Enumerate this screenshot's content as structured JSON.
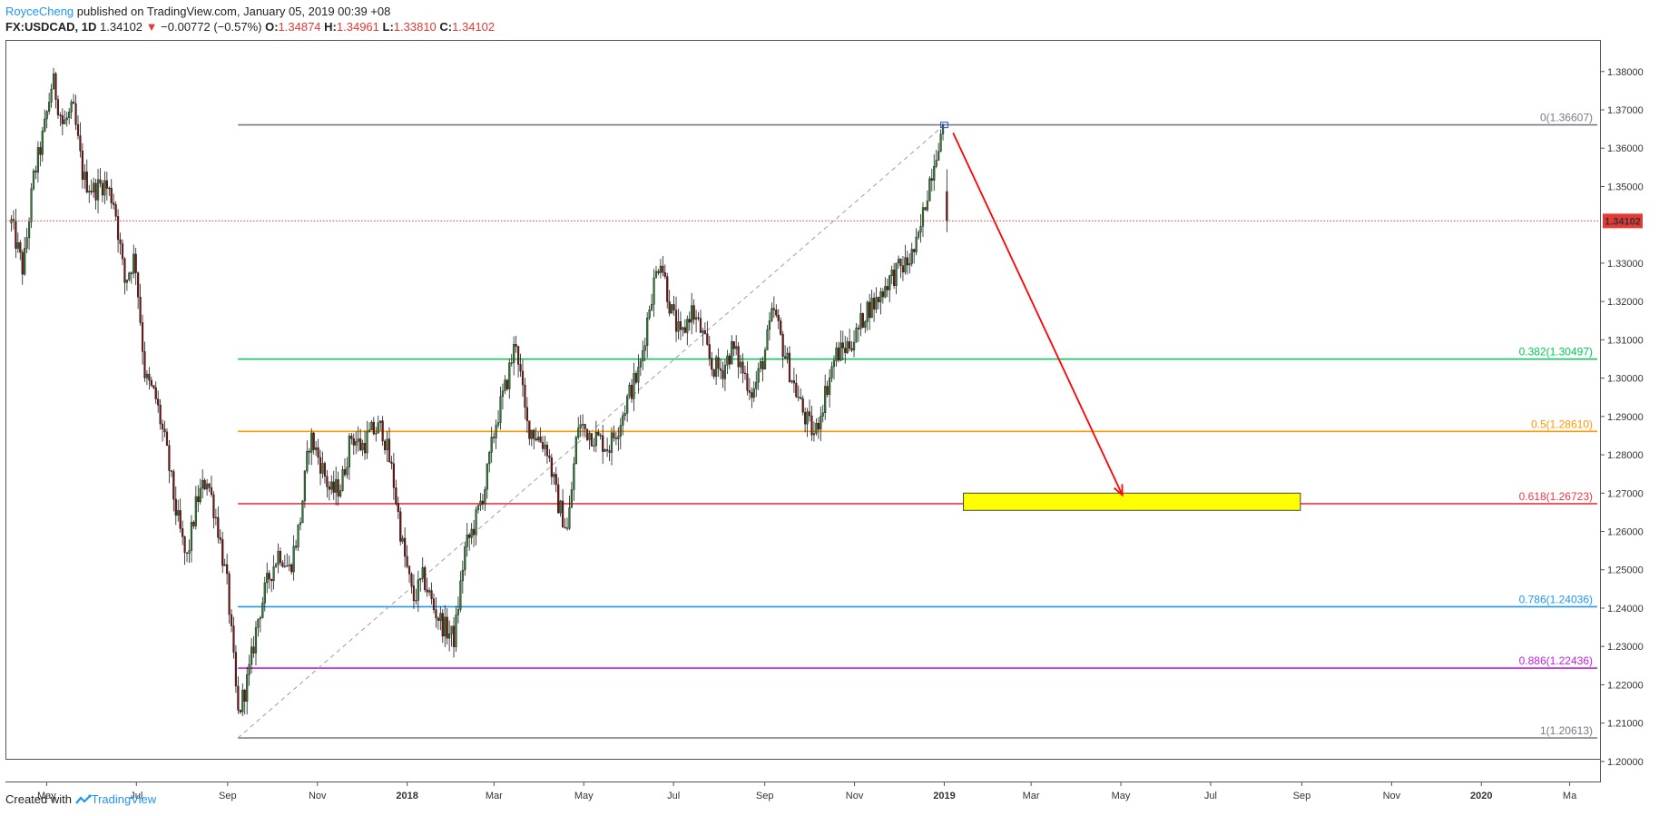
{
  "header": {
    "author": "RoyceCheng",
    "published": " published on TradingView.com, January 05, 2019 00:39 +08"
  },
  "ticker": {
    "symbol": "FX:USDCAD, 1D",
    "last": "1.34102",
    "arrow": "▼",
    "change": "−0.00772 (−0.57%)",
    "o_label": "O:",
    "o_value": "1.34874",
    "h_label": "H:",
    "h_value": "1.34961",
    "l_label": "L:",
    "l_value": "1.33810",
    "c_label": "C:",
    "c_value": "1.34102"
  },
  "footer": {
    "created_with": "Created with",
    "brand": "TradingView"
  },
  "colors": {
    "up_candle": "#2e7d32",
    "down_candle": "#7b1111",
    "price_line": "#e53935",
    "arrow": "#ff0000",
    "target_box": "#ffff00"
  },
  "chart_data": {
    "type": "candlestick",
    "title": "",
    "xlabel": "",
    "ylabel": "",
    "ylim": [
      1.195,
      1.388
    ],
    "x_ticks": [
      "May",
      "Jul",
      "Sep",
      "Nov",
      "2018",
      "Mar",
      "May",
      "Jul",
      "Sep",
      "Nov",
      "2019",
      "Mar",
      "May",
      "Jul",
      "Sep",
      "Nov",
      "2020",
      "Ma"
    ],
    "y_ticks": [
      "1.38000",
      "1.37000",
      "1.36000",
      "1.35000",
      "1.33000",
      "1.32000",
      "1.31000",
      "1.30000",
      "1.29000",
      "1.28000",
      "1.27000",
      "1.26000",
      "1.25000",
      "1.24000",
      "1.23000",
      "1.22000",
      "1.21000",
      "1.20000"
    ],
    "current_price": {
      "value": 1.34102,
      "label": "1.34102"
    },
    "price_path": [
      [
        "2017-04-07",
        1.3405
      ],
      [
        "2017-04-15",
        1.328
      ],
      [
        "2017-04-22",
        1.352
      ],
      [
        "2017-04-29",
        1.364
      ],
      [
        "2017-05-05",
        1.378
      ],
      [
        "2017-05-12",
        1.366
      ],
      [
        "2017-05-19",
        1.37
      ],
      [
        "2017-05-26",
        1.352
      ],
      [
        "2017-06-02",
        1.349
      ],
      [
        "2017-06-09",
        1.351
      ],
      [
        "2017-06-16",
        1.346
      ],
      [
        "2017-06-23",
        1.325
      ],
      [
        "2017-06-30",
        1.332
      ],
      [
        "2017-07-07",
        1.3
      ],
      [
        "2017-07-14",
        1.295
      ],
      [
        "2017-07-21",
        1.282
      ],
      [
        "2017-07-28",
        1.265
      ],
      [
        "2017-08-04",
        1.252
      ],
      [
        "2017-08-11",
        1.268
      ],
      [
        "2017-08-18",
        1.274
      ],
      [
        "2017-08-25",
        1.262
      ],
      [
        "2017-09-01",
        1.245
      ],
      [
        "2017-09-08",
        1.212
      ],
      [
        "2017-09-15",
        1.222
      ],
      [
        "2017-09-22",
        1.238
      ],
      [
        "2017-09-29",
        1.248
      ],
      [
        "2017-10-06",
        1.255
      ],
      [
        "2017-10-13",
        1.25
      ],
      [
        "2017-10-20",
        1.262
      ],
      [
        "2017-10-27",
        1.285
      ],
      [
        "2017-11-03",
        1.278
      ],
      [
        "2017-11-10",
        1.27
      ],
      [
        "2017-11-17",
        1.272
      ],
      [
        "2017-11-24",
        1.285
      ],
      [
        "2017-12-01",
        1.282
      ],
      [
        "2017-12-08",
        1.286
      ],
      [
        "2017-12-15",
        1.287
      ],
      [
        "2017-12-22",
        1.275
      ],
      [
        "2017-12-29",
        1.256
      ],
      [
        "2018-01-05",
        1.242
      ],
      [
        "2018-01-12",
        1.248
      ],
      [
        "2018-01-19",
        1.24
      ],
      [
        "2018-01-26",
        1.235
      ],
      [
        "2018-02-02",
        1.232
      ],
      [
        "2018-02-09",
        1.255
      ],
      [
        "2018-02-16",
        1.262
      ],
      [
        "2018-02-23",
        1.272
      ],
      [
        "2018-03-02",
        1.288
      ],
      [
        "2018-03-09",
        1.298
      ],
      [
        "2018-03-16",
        1.31
      ],
      [
        "2018-03-23",
        1.288
      ],
      [
        "2018-03-30",
        1.285
      ],
      [
        "2018-04-06",
        1.282
      ],
      [
        "2018-04-13",
        1.268
      ],
      [
        "2018-04-20",
        1.26
      ],
      [
        "2018-04-27",
        1.288
      ],
      [
        "2018-05-04",
        1.286
      ],
      [
        "2018-05-11",
        1.284
      ],
      [
        "2018-05-18",
        1.282
      ],
      [
        "2018-05-25",
        1.288
      ],
      [
        "2018-06-01",
        1.296
      ],
      [
        "2018-06-08",
        1.302
      ],
      [
        "2018-06-15",
        1.32
      ],
      [
        "2018-06-22",
        1.332
      ],
      [
        "2018-06-29",
        1.318
      ],
      [
        "2018-07-06",
        1.31
      ],
      [
        "2018-07-13",
        1.318
      ],
      [
        "2018-07-20",
        1.312
      ],
      [
        "2018-07-27",
        1.303
      ],
      [
        "2018-08-03",
        1.302
      ],
      [
        "2018-08-10",
        1.308
      ],
      [
        "2018-08-17",
        1.302
      ],
      [
        "2018-08-24",
        1.296
      ],
      [
        "2018-08-31",
        1.305
      ],
      [
        "2018-09-07",
        1.318
      ],
      [
        "2018-09-14",
        1.307
      ],
      [
        "2018-09-21",
        1.298
      ],
      [
        "2018-09-28",
        1.29
      ],
      [
        "2018-10-05",
        1.285
      ],
      [
        "2018-10-12",
        1.296
      ],
      [
        "2018-10-19",
        1.306
      ],
      [
        "2018-10-26",
        1.308
      ],
      [
        "2018-11-02",
        1.311
      ],
      [
        "2018-11-09",
        1.318
      ],
      [
        "2018-11-16",
        1.32
      ],
      [
        "2018-11-23",
        1.325
      ],
      [
        "2018-11-30",
        1.328
      ],
      [
        "2018-12-07",
        1.33
      ],
      [
        "2018-12-14",
        1.335
      ],
      [
        "2018-12-21",
        1.35
      ],
      [
        "2018-12-28",
        1.362
      ],
      [
        "2019-01-01",
        1.364
      ],
      [
        "2019-01-04",
        1.341
      ]
    ],
    "swing_low": {
      "date": "2017-09-08",
      "price": 1.20613
    },
    "swing_high": {
      "date": "2019-01-01",
      "price": 1.36607
    },
    "fib_levels": [
      {
        "ratio": "0",
        "price": 1.36607,
        "label": "0(1.36607)",
        "color": "#787b86"
      },
      {
        "ratio": "0.382",
        "price": 1.30497,
        "label": "0.382(1.30497)",
        "color": "#00c853"
      },
      {
        "ratio": "0.5",
        "price": 1.2861,
        "label": "0.5(1.28610)",
        "color": "#ff9800"
      },
      {
        "ratio": "0.618",
        "price": 1.26723,
        "label": "0.618(1.26723)",
        "color": "#f23645"
      },
      {
        "ratio": "0.786",
        "price": 1.24036,
        "label": "0.786(1.24036)",
        "color": "#2196f3"
      },
      {
        "ratio": "0.886",
        "price": 1.22436,
        "label": "0.886(1.22436)",
        "color": "#c020e0"
      },
      {
        "ratio": "1",
        "price": 1.20613,
        "label": "1(1.20613)",
        "color": "#787b86"
      }
    ],
    "projection_arrow": {
      "from": [
        "2019-01-07",
        1.364
      ],
      "to": [
        "2019-05-02",
        1.2695
      ]
    },
    "target_zone": {
      "from_date": "2019-01-14",
      "to_date": "2019-08-31",
      "top": 1.27,
      "bottom": 1.2655
    }
  }
}
